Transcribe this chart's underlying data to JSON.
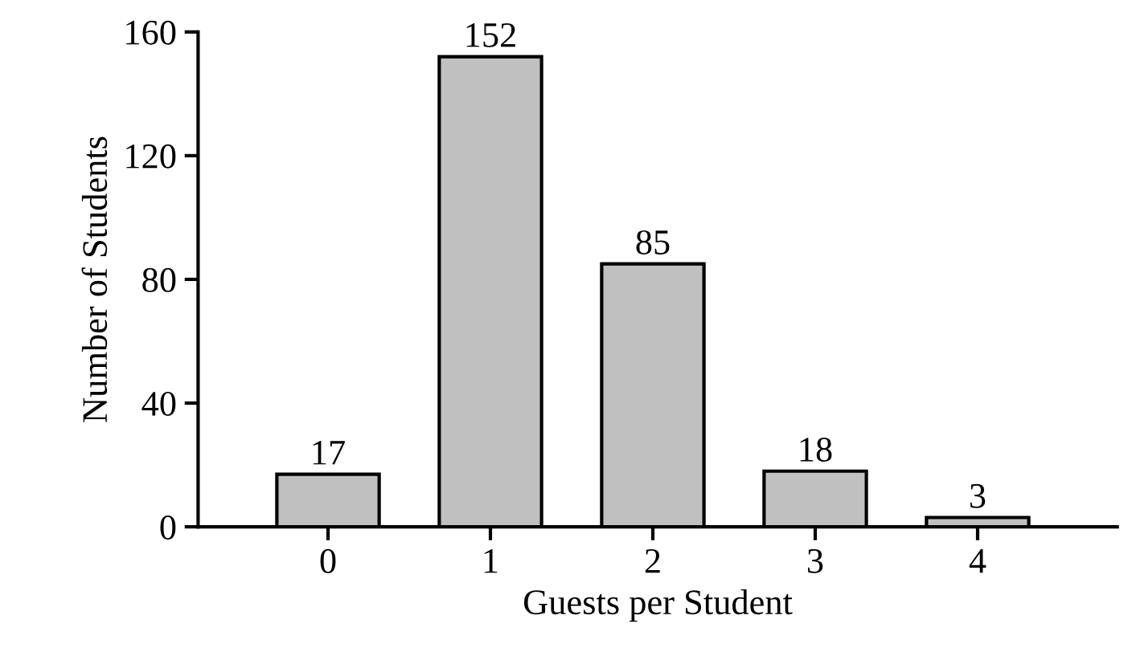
{
  "chart_data": {
    "type": "bar",
    "xlabel": "Guests per Student",
    "ylabel": "Number of Students",
    "categories": [
      "0",
      "1",
      "2",
      "3",
      "4"
    ],
    "values": [
      17,
      152,
      85,
      18,
      3
    ],
    "color": "#c0c0c0",
    "ylim": [
      0,
      160
    ],
    "yticks": [
      0,
      40,
      80,
      120,
      160
    ],
    "data_labels": true,
    "grid": false,
    "legend": false
  }
}
